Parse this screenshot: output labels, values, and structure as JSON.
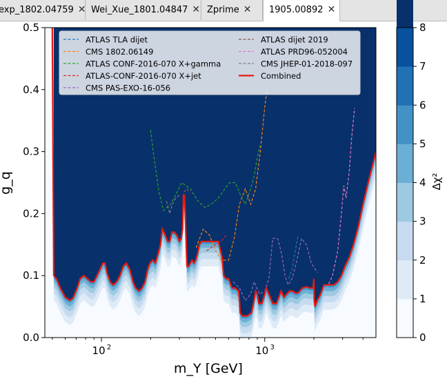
{
  "tabs": [
    {
      "label": "exp_1802.04759",
      "active": false
    },
    {
      "label": "Wei_Xue_1801.04847",
      "active": false
    },
    {
      "label": "Zprime",
      "active": false
    },
    {
      "label": "1905.00892",
      "active": false
    }
  ],
  "chart_data": {
    "type": "heatmap",
    "xlabel": "m_Y [GeV]",
    "ylabel": "g_q",
    "xscale": "log",
    "xlim": [
      45,
      4800
    ],
    "ylim": [
      0.0,
      0.5
    ],
    "x_tick_labels": [
      "10^2",
      "10^3"
    ],
    "x_ticks": [
      100,
      1000
    ],
    "y_ticks": [
      0.0,
      0.1,
      0.2,
      0.3,
      0.4,
      0.5
    ],
    "y_tick_labels": [
      "0.0",
      "0.1",
      "0.2",
      "0.3",
      "0.4",
      "0.5"
    ],
    "colorbar": {
      "label": "Δχ²",
      "ticks": [
        0,
        1,
        2,
        3,
        4,
        5,
        6,
        7,
        8
      ],
      "colors": [
        "#f7fbff",
        "#deebf7",
        "#c6dbef",
        "#9ecae1",
        "#6baed6",
        "#4292c6",
        "#2171b5",
        "#08519c",
        "#08306b"
      ]
    },
    "legend_position": "top",
    "series": [
      {
        "name": "ATLAS TLA dijet",
        "color": "#1f77b4",
        "style": "dashed",
        "points": [
          [
            1400,
            0.095
          ],
          [
            1470,
            0.11
          ],
          [
            1540,
            0.14
          ],
          [
            1600,
            0.165
          ]
        ]
      },
      {
        "name": "CMS 1802.06149",
        "color": "#ff7f0e",
        "style": "dashed",
        "points": [
          [
            380,
            0.145
          ],
          [
            420,
            0.175
          ],
          [
            460,
            0.165
          ],
          [
            500,
            0.14
          ],
          [
            540,
            0.125
          ],
          [
            600,
            0.125
          ],
          [
            650,
            0.16
          ],
          [
            700,
            0.215
          ],
          [
            760,
            0.24
          ],
          [
            820,
            0.215
          ],
          [
            880,
            0.24
          ],
          [
            940,
            0.3
          ],
          [
            990,
            0.36
          ],
          [
            1030,
            0.4
          ]
        ]
      },
      {
        "name": "ATLAS CONF-2016-070 X+gamma",
        "color": "#2ca02c",
        "style": "dashed",
        "points": [
          [
            200,
            0.335
          ],
          [
            210,
            0.29
          ],
          [
            225,
            0.235
          ],
          [
            240,
            0.205
          ],
          [
            265,
            0.215
          ],
          [
            285,
            0.23
          ],
          [
            310,
            0.25
          ],
          [
            350,
            0.24
          ],
          [
            390,
            0.22
          ],
          [
            430,
            0.21
          ],
          [
            470,
            0.215
          ],
          [
            520,
            0.225
          ],
          [
            570,
            0.24
          ],
          [
            610,
            0.25
          ],
          [
            660,
            0.25
          ],
          [
            710,
            0.23
          ],
          [
            760,
            0.215
          ],
          [
            810,
            0.235
          ],
          [
            860,
            0.26
          ],
          [
            900,
            0.29
          ],
          [
            940,
            0.31
          ]
        ]
      },
      {
        "name": "ATLAS-CONF-2016-070 X+jet",
        "color": "#d62728",
        "style": "dashed",
        "points": [
          [
            440,
            0.14
          ],
          [
            470,
            0.145
          ],
          [
            500,
            0.15
          ],
          [
            540,
            0.155
          ],
          [
            580,
            0.165
          ]
        ]
      },
      {
        "name": "CMS PAS-EXO-16-056",
        "color": "#9467bd",
        "style": "dashed",
        "points": [
          [
            640,
            0.09
          ],
          [
            700,
            0.08
          ],
          [
            760,
            0.06
          ],
          [
            820,
            0.07
          ],
          [
            860,
            0.09
          ],
          [
            930,
            0.07
          ],
          [
            1000,
            0.075
          ],
          [
            1060,
            0.095
          ],
          [
            1120,
            0.16
          ],
          [
            1200,
            0.16
          ],
          [
            1270,
            0.135
          ],
          [
            1330,
            0.1
          ],
          [
            1390,
            0.085
          ],
          [
            1470,
            0.095
          ],
          [
            1560,
            0.12
          ],
          [
            1680,
            0.16
          ],
          [
            1800,
            0.15
          ],
          [
            1930,
            0.12
          ],
          [
            2100,
            0.105
          ]
        ]
      },
      {
        "name": "ATLAS dijet 2019",
        "color": "#8c564b",
        "style": "dashed",
        "points": [
          [
            320,
            0.235
          ],
          [
            335,
            0.24
          ],
          [
            345,
            0.235
          ]
        ]
      },
      {
        "name": "ATLAS PRD96-052004",
        "color": "#e377c2",
        "style": "dashed",
        "points": [
          [
            2400,
            0.08
          ],
          [
            2600,
            0.1
          ],
          [
            2800,
            0.14
          ],
          [
            2950,
            0.2
          ],
          [
            3050,
            0.245
          ],
          [
            3150,
            0.225
          ],
          [
            3300,
            0.27
          ],
          [
            3400,
            0.32
          ],
          [
            3550,
            0.37
          ]
        ]
      },
      {
        "name": "CMS JHEP-01-2018-097",
        "color": "#7f7f7f",
        "style": "dashed",
        "points": [
          [
            250,
            0.22
          ],
          [
            262,
            0.2
          ],
          [
            272,
            0.215
          ],
          [
            285,
            0.225
          ],
          [
            300,
            0.23
          ]
        ]
      },
      {
        "name": "Combined",
        "color": "#e8190f",
        "style": "solid",
        "points": [
          [
            50,
            0.5
          ],
          [
            51,
            0.1
          ],
          [
            53,
            0.095
          ],
          [
            56,
            0.08
          ],
          [
            60,
            0.065
          ],
          [
            64,
            0.06
          ],
          [
            67,
            0.064
          ],
          [
            71,
            0.08
          ],
          [
            74,
            0.095
          ],
          [
            78,
            0.1
          ],
          [
            82,
            0.095
          ],
          [
            86,
            0.09
          ],
          [
            90,
            0.09
          ],
          [
            94,
            0.1
          ],
          [
            98,
            0.11
          ],
          [
            102,
            0.12
          ],
          [
            105,
            0.12
          ],
          [
            108,
            0.105
          ],
          [
            113,
            0.09
          ],
          [
            118,
            0.085
          ],
          [
            124,
            0.09
          ],
          [
            130,
            0.1
          ],
          [
            136,
            0.115
          ],
          [
            142,
            0.12
          ],
          [
            149,
            0.11
          ],
          [
            156,
            0.09
          ],
          [
            162,
            0.08
          ],
          [
            170,
            0.075
          ],
          [
            177,
            0.08
          ],
          [
            185,
            0.09
          ],
          [
            192,
            0.11
          ],
          [
            198,
            0.12
          ],
          [
            206,
            0.125
          ],
          [
            214,
            0.12
          ],
          [
            222,
            0.135
          ],
          [
            230,
            0.15
          ],
          [
            236,
            0.175
          ],
          [
            241,
            0.17
          ],
          [
            246,
            0.165
          ],
          [
            254,
            0.155
          ],
          [
            262,
            0.155
          ],
          [
            270,
            0.17
          ],
          [
            280,
            0.17
          ],
          [
            290,
            0.165
          ],
          [
            300,
            0.155
          ],
          [
            308,
            0.16
          ],
          [
            314,
            0.175
          ],
          [
            318,
            0.23
          ],
          [
            322,
            0.23
          ],
          [
            326,
            0.2
          ],
          [
            330,
            0.155
          ],
          [
            334,
            0.115
          ],
          [
            342,
            0.115
          ],
          [
            350,
            0.12
          ],
          [
            358,
            0.125
          ],
          [
            368,
            0.12
          ],
          [
            378,
            0.125
          ],
          [
            388,
            0.135
          ],
          [
            398,
            0.15
          ],
          [
            410,
            0.155
          ],
          [
            440,
            0.155
          ],
          [
            480,
            0.155
          ],
          [
            520,
            0.155
          ],
          [
            548,
            0.13
          ],
          [
            560,
            0.1
          ],
          [
            580,
            0.095
          ],
          [
            600,
            0.095
          ],
          [
            630,
            0.08
          ],
          [
            660,
            0.08
          ],
          [
            692,
            0.075
          ],
          [
            700,
            0.06
          ],
          [
            706,
            0.04
          ],
          [
            730,
            0.035
          ],
          [
            780,
            0.035
          ],
          [
            830,
            0.04
          ],
          [
            860,
            0.06
          ],
          [
            880,
            0.075
          ],
          [
            900,
            0.07
          ],
          [
            920,
            0.055
          ],
          [
            960,
            0.055
          ],
          [
            1000,
            0.07
          ],
          [
            1020,
            0.08
          ],
          [
            1060,
            0.07
          ],
          [
            1120,
            0.055
          ],
          [
            1180,
            0.055
          ],
          [
            1220,
            0.065
          ],
          [
            1260,
            0.075
          ],
          [
            1310,
            0.065
          ],
          [
            1360,
            0.07
          ],
          [
            1420,
            0.075
          ],
          [
            1480,
            0.075
          ],
          [
            1540,
            0.072
          ],
          [
            1600,
            0.072
          ],
          [
            1700,
            0.08
          ],
          [
            1800,
            0.082
          ],
          [
            1880,
            0.08
          ],
          [
            1980,
            0.08
          ],
          [
            2000,
            0.095
          ],
          [
            2010,
            0.06
          ],
          [
            2030,
            0.05
          ],
          [
            2100,
            0.06
          ],
          [
            2200,
            0.07
          ],
          [
            2300,
            0.085
          ],
          [
            2400,
            0.085
          ],
          [
            2500,
            0.085
          ],
          [
            2650,
            0.085
          ],
          [
            2800,
            0.09
          ],
          [
            2950,
            0.1
          ],
          [
            3100,
            0.115
          ],
          [
            3300,
            0.13
          ],
          [
            3500,
            0.15
          ],
          [
            3750,
            0.18
          ],
          [
            4000,
            0.215
          ],
          [
            4300,
            0.25
          ],
          [
            4600,
            0.28
          ],
          [
            4800,
            0.3
          ]
        ]
      }
    ]
  }
}
